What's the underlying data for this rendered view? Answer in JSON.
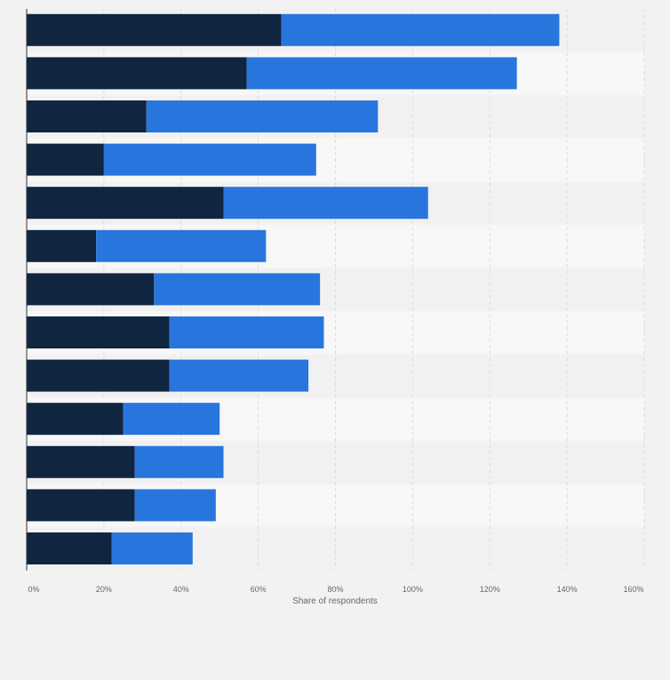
{
  "colors": {
    "page_background": "#f2f2f2",
    "band_light": "#f7f7f7",
    "band_dark": "#f1f1f1",
    "series_1": "#10253f",
    "series_2": "#2876dd",
    "axis_text": "#666666",
    "gridline": "#dddddd"
  },
  "chart_data": {
    "type": "bar",
    "orientation": "horizontal",
    "stacked": true,
    "title": "",
    "xlabel": "Share of respondents",
    "ylabel": "",
    "xlim": [
      0,
      160
    ],
    "x_ticks": [
      "0%",
      "20%",
      "40%",
      "60%",
      "80%",
      "100%",
      "120%",
      "140%",
      "160%"
    ],
    "grid": true,
    "legend": false,
    "categories": [
      "",
      "",
      "",
      "",
      "",
      "",
      "",
      "",
      "",
      "",
      "",
      "",
      ""
    ],
    "series": [
      {
        "color": "#10253f",
        "values": [
          66,
          57,
          31,
          20,
          51,
          18,
          33,
          37,
          37,
          25,
          28,
          28,
          22
        ]
      },
      {
        "color": "#2876dd",
        "values": [
          72,
          70,
          60,
          55,
          53,
          44,
          43,
          40,
          36,
          25,
          23,
          21,
          21
        ]
      }
    ]
  }
}
